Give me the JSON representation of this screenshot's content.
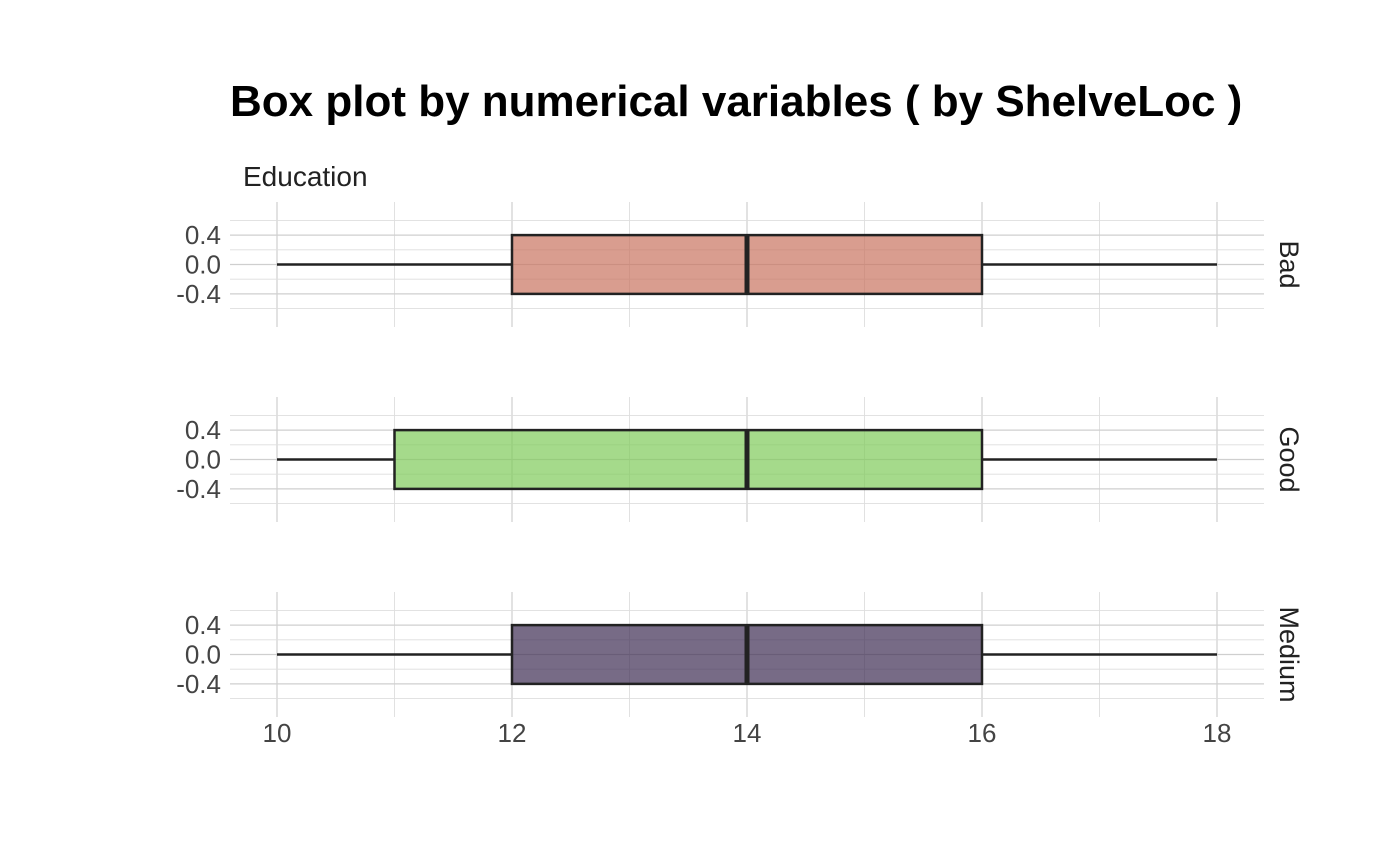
{
  "chart_data": {
    "type": "box",
    "title": "Box plot by numerical variables ( by ShelveLoc )",
    "subtitle": "Education",
    "xlim": [
      10,
      18
    ],
    "x_ticks": [
      10,
      12,
      14,
      16,
      18
    ],
    "x_tick_labels": [
      "10",
      "12",
      "14",
      "16",
      "18"
    ],
    "ylim": [
      -0.6,
      0.6
    ],
    "y_ticks": [
      -0.4,
      0.0,
      0.4
    ],
    "y_tick_labels": [
      "-0.4",
      "0.0",
      "0.4"
    ],
    "grid": true,
    "series": [
      {
        "name": "Bad",
        "min": 10,
        "q1": 12,
        "median": 14,
        "q3": 16,
        "max": 18,
        "color": "#c9735f"
      },
      {
        "name": "Good",
        "min": 10,
        "q1": 11,
        "median": 14,
        "q3": 16,
        "max": 18,
        "color": "#7fcb5a"
      },
      {
        "name": "Medium",
        "min": 10,
        "q1": 12,
        "median": 14,
        "q3": 16,
        "max": 18,
        "color": "#3d2c52"
      }
    ]
  }
}
